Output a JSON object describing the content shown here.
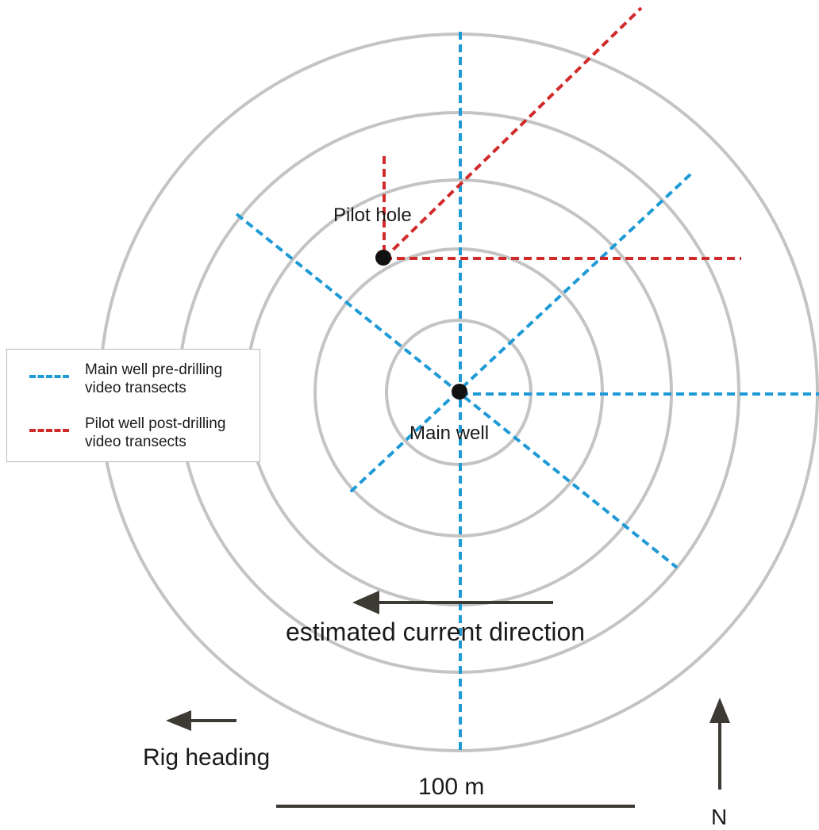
{
  "colors": {
    "ring": "#c4c4c4",
    "main_transect": "#1e9ad6",
    "pilot_transect": "#d12a2a",
    "well_marker": "#111111",
    "arrow": "#3d3a33",
    "text": "#1a1a1a",
    "legend_border": "#b8b8b8"
  },
  "rings": {
    "count": 5
  },
  "main_well": {
    "label": "Main well"
  },
  "pilot_hole": {
    "label": "Pilot hole"
  },
  "current": {
    "label": "estimated current direction",
    "direction": "west"
  },
  "rig": {
    "label": "Rig heading",
    "direction": "west"
  },
  "scale_bar": {
    "label": "100 m"
  },
  "north_arrow": {
    "label": "N"
  },
  "legend": {
    "items": [
      {
        "label": "Main well pre-drilling\nvideo transects",
        "color": "#1e9ad6"
      },
      {
        "label": "Pilot well post-drilling\nvideo transects",
        "color": "#d12a2a"
      }
    ]
  }
}
